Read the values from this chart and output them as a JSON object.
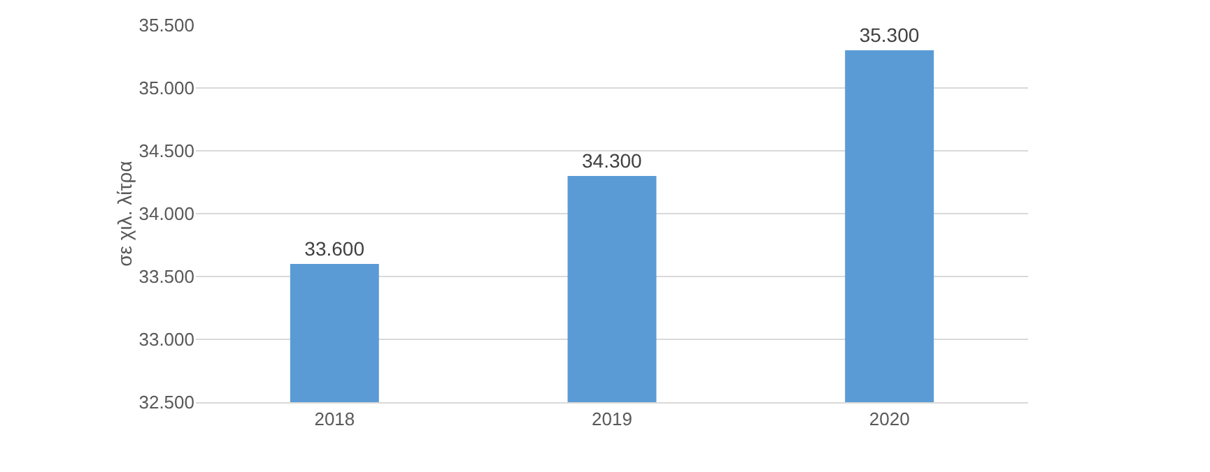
{
  "chart_data": {
    "type": "bar",
    "ylabel": "σε χιλ. λίτρα",
    "categories": [
      "2018",
      "2019",
      "2020"
    ],
    "values": [
      33600,
      34300,
      35300
    ],
    "value_labels": [
      "33.600",
      "34.300",
      "35.300"
    ],
    "color": "#5b9bd5",
    "ylim": [
      32500,
      35500
    ],
    "yticks": [
      {
        "value": 32500,
        "label": "32.500"
      },
      {
        "value": 33000,
        "label": "33.000"
      },
      {
        "value": 33500,
        "label": "33.500"
      },
      {
        "value": 34000,
        "label": "34.000"
      },
      {
        "value": 34500,
        "label": "34.500"
      },
      {
        "value": 35000,
        "label": "35.000"
      },
      {
        "value": 35500,
        "label": "35.500"
      }
    ],
    "grid": "y",
    "legend": false
  }
}
